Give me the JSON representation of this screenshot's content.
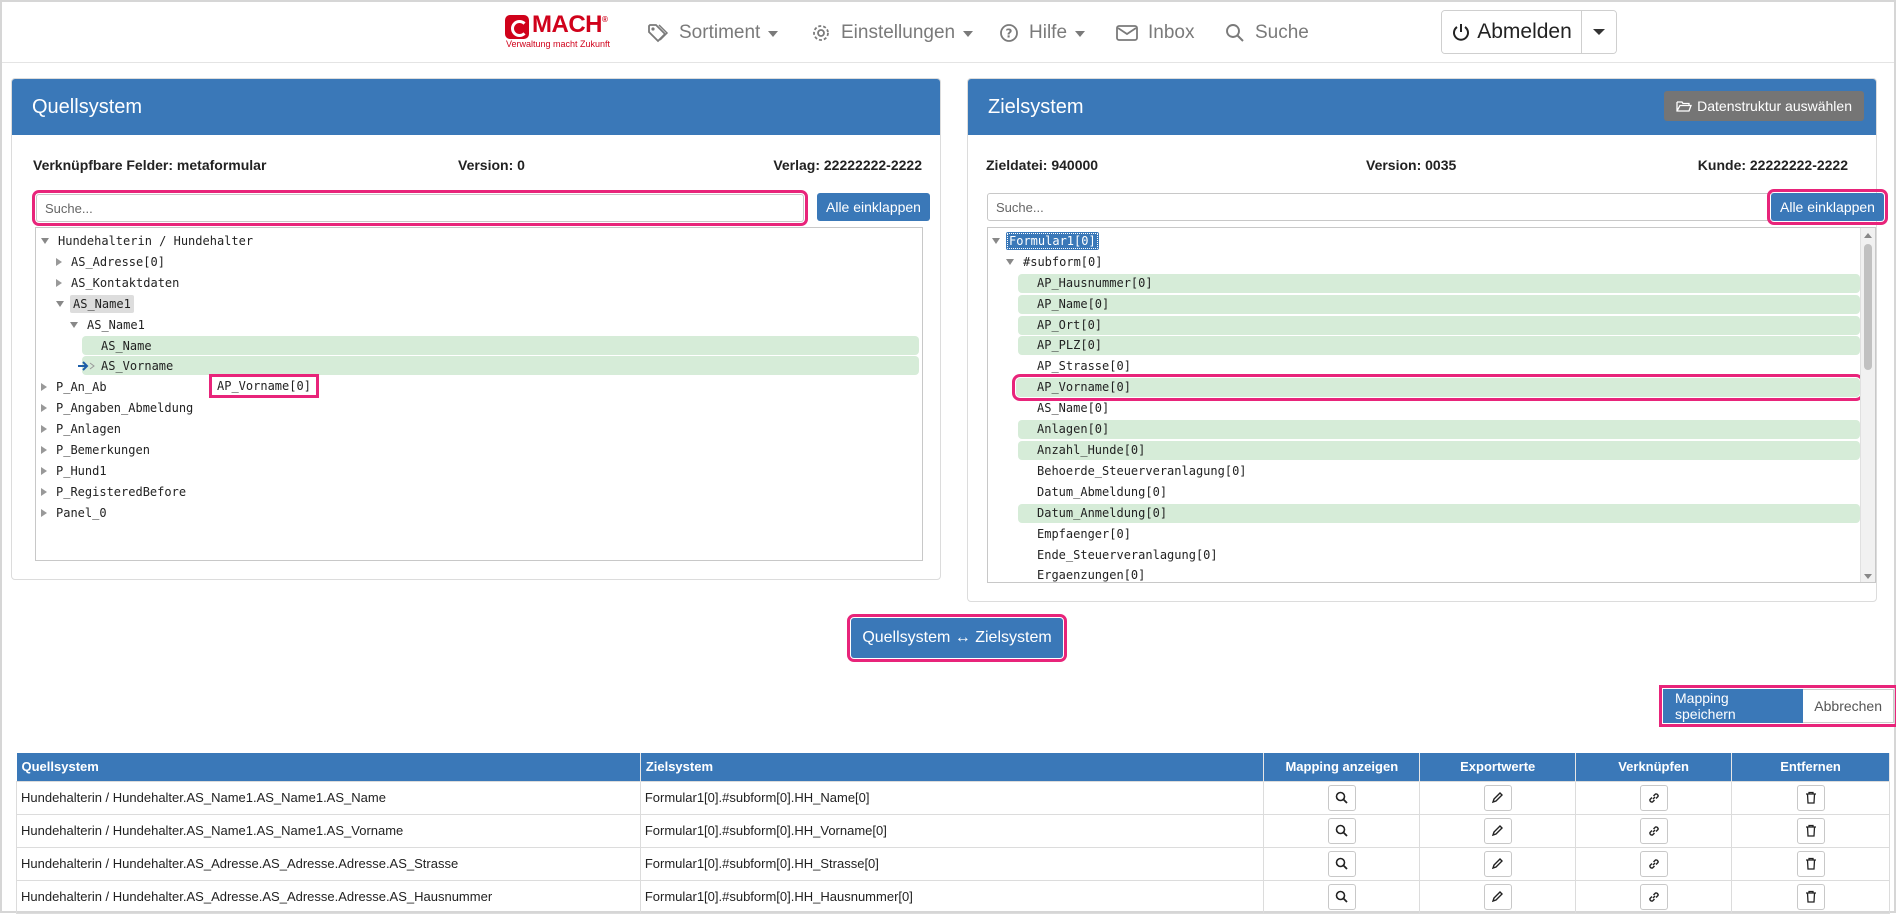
{
  "brand": {
    "name": "MACH",
    "tagline": "Verwaltung macht Zukunft",
    "color": "#d0021b"
  },
  "nav": {
    "sortiment": "Sortiment",
    "einstellungen": "Einstellungen",
    "hilfe": "Hilfe",
    "inbox": "Inbox",
    "suche": "Suche",
    "abmelden": "Abmelden"
  },
  "source": {
    "title": "Quellsystem",
    "fields_label": "Verknüpfbare Felder: metaformular",
    "version_label": "Version: 0",
    "publisher_label": "Verlag: 22222222-2222",
    "search_placeholder": "Suche...",
    "collapse_label": "Alle einklappen",
    "tree": [
      "Hundehalterin / Hundehalter",
      "AS_Adresse[0]",
      "AS_Kontaktdaten",
      "AS_Name1",
      "AS_Name1",
      "AS_Name",
      "AS_Vorname",
      "P_An_Ab",
      "P_Angaben_Abmeldung",
      "P_Anlagen",
      "P_Bemerkungen",
      "P_Hund1",
      "P_RegisteredBefore",
      "Panel_0"
    ],
    "drag_label": "AP_Vorname[0]"
  },
  "target": {
    "title": "Zielsystem",
    "structure_button": "Datenstruktur auswählen",
    "file_label": "Zieldatei: 940000",
    "version_label": "Version: 0035",
    "customer_label": "Kunde: 22222222-2222",
    "search_placeholder": "Suche...",
    "collapse_label": "Alle einklappen",
    "tree": [
      "Formular1[0]",
      "#subform[0]",
      "AP_Hausnummer[0]",
      "AP_Name[0]",
      "AP_Ort[0]",
      "AP_PLZ[0]",
      "AP_Strasse[0]",
      "AP_Vorname[0]",
      "AS_Name[0]",
      "Anlagen[0]",
      "Anzahl_Hunde[0]",
      "Behoerde_Steuerveranlagung[0]",
      "Datum_Abmeldung[0]",
      "Datum_Anmeldung[0]",
      "Empfaenger[0]",
      "Ende_Steuerveranlagung[0]",
      "Ergaenzungen[0]"
    ]
  },
  "actions": {
    "map_button": "Quellsystem ↔ Zielsystem",
    "save_button": "Mapping speichern",
    "cancel_button": "Abbrechen"
  },
  "table": {
    "headers": [
      "Quellsystem",
      "Zielsystem",
      "Mapping anzeigen",
      "Exportwerte",
      "Verknüpfen",
      "Entfernen"
    ],
    "rows": [
      {
        "source": "Hundehalterin / Hundehalter.AS_Name1.AS_Name1.AS_Name",
        "target": "Formular1[0].#subform[0].HH_Name[0]"
      },
      {
        "source": "Hundehalterin / Hundehalter.AS_Name1.AS_Name1.AS_Vorname",
        "target": "Formular1[0].#subform[0].HH_Vorname[0]"
      },
      {
        "source": "Hundehalterin / Hundehalter.AS_Adresse.AS_Adresse.Adresse.AS_Strasse",
        "target": "Formular1[0].#subform[0].HH_Strasse[0]"
      },
      {
        "source": "Hundehalterin / Hundehalter.AS_Adresse.AS_Adresse.Adresse.AS_Hausnummer",
        "target": "Formular1[0].#subform[0].HH_Hausnummer[0]"
      }
    ]
  },
  "colors": {
    "primary": "#3a78b8",
    "highlight": "#e8247a",
    "mapped": "#d6ecd8",
    "grey_button": "#757575"
  }
}
